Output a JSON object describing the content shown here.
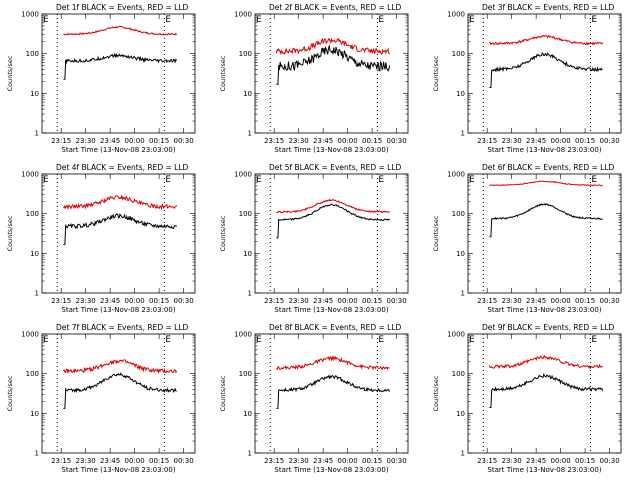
{
  "chart_data": [
    {
      "type": "line",
      "title": "Det 1f BLACK = Events, RED = LLD",
      "xlabel": "Start Time (13-Nov-08 23:03:00)",
      "ylabel": "Counts/sec",
      "yscale": "log",
      "ylim": [
        1,
        1000
      ],
      "x_tick_labels": [
        "23:15",
        "23:30",
        "23:45",
        "00:00",
        "00:15",
        "00:30"
      ],
      "markers": [
        "E",
        "E"
      ],
      "series": [
        {
          "name": "LLD",
          "color": "#dd0000",
          "base": 310,
          "amp": 0.18,
          "noise": 0.02
        },
        {
          "name": "Events",
          "color": "#000000",
          "base": 65,
          "amp": 0.14,
          "noise": 0.04,
          "startDip": true
        }
      ]
    },
    {
      "type": "line",
      "title": "Det 2f BLACK = Events, RED = LLD",
      "xlabel": "Start Time (13-Nov-08 23:03:00)",
      "ylabel": "Counts/sec",
      "yscale": "log",
      "ylim": [
        1,
        1000
      ],
      "x_tick_labels": [
        "23:15",
        "23:30",
        "23:45",
        "00:00",
        "00:15",
        "00:30"
      ],
      "markers": [
        "E",
        "E"
      ],
      "series": [
        {
          "name": "LLD",
          "color": "#dd0000",
          "base": 115,
          "amp": 0.28,
          "noise": 0.07
        },
        {
          "name": "Events",
          "color": "#000000",
          "base": 48,
          "amp": 0.42,
          "noise": 0.12,
          "startDip": true
        }
      ]
    },
    {
      "type": "line",
      "title": "Det 3f BLACK = Events, RED = LLD",
      "xlabel": "Start Time (13-Nov-08 23:03:00)",
      "ylabel": "Counts/sec",
      "yscale": "log",
      "ylim": [
        1,
        1000
      ],
      "x_tick_labels": [
        "23:15",
        "23:30",
        "23:45",
        "00:00",
        "00:15",
        "00:30"
      ],
      "markers": [
        "E",
        "E"
      ],
      "series": [
        {
          "name": "LLD",
          "color": "#dd0000",
          "base": 180,
          "amp": 0.18,
          "noise": 0.03
        },
        {
          "name": "Events",
          "color": "#000000",
          "base": 40,
          "amp": 0.38,
          "noise": 0.04,
          "startDip": true
        }
      ]
    },
    {
      "type": "line",
      "title": "Det 4f BLACK = Events, RED = LLD",
      "xlabel": "Start Time (13-Nov-08 23:03:00)",
      "ylabel": "Counts/sec",
      "yscale": "log",
      "ylim": [
        1,
        1000
      ],
      "x_tick_labels": [
        "23:15",
        "23:30",
        "23:45",
        "00:00",
        "00:15",
        "00:30"
      ],
      "markers": [
        "E",
        "E"
      ],
      "series": [
        {
          "name": "LLD",
          "color": "#dd0000",
          "base": 150,
          "amp": 0.24,
          "noise": 0.05
        },
        {
          "name": "Events",
          "color": "#000000",
          "base": 48,
          "amp": 0.26,
          "noise": 0.05,
          "startDip": true
        }
      ]
    },
    {
      "type": "line",
      "title": "Det 5f BLACK = Events, RED = LLD",
      "xlabel": "Start Time (13-Nov-08 23:03:00)",
      "ylabel": "Counts/sec",
      "yscale": "log",
      "ylim": [
        1,
        1000
      ],
      "x_tick_labels": [
        "23:15",
        "23:30",
        "23:45",
        "00:00",
        "00:15",
        "00:30"
      ],
      "markers": [
        "E",
        "E"
      ],
      "series": [
        {
          "name": "LLD",
          "color": "#dd0000",
          "base": 110,
          "amp": 0.3,
          "noise": 0.02
        },
        {
          "name": "Events",
          "color": "#000000",
          "base": 70,
          "amp": 0.38,
          "noise": 0.02,
          "startDip": true
        }
      ]
    },
    {
      "type": "line",
      "title": "Det 6f BLACK = Events, RED = LLD",
      "xlabel": "Start Time (13-Nov-08 23:03:00)",
      "ylabel": "Counts/sec",
      "yscale": "log",
      "ylim": [
        1,
        1000
      ],
      "x_tick_labels": [
        "23:15",
        "23:30",
        "23:45",
        "00:00",
        "00:15",
        "00:30"
      ],
      "markers": [
        "E",
        "E"
      ],
      "series": [
        {
          "name": "LLD",
          "color": "#dd0000",
          "base": 520,
          "amp": 0.1,
          "noise": 0.01
        },
        {
          "name": "Events",
          "color": "#000000",
          "base": 75,
          "amp": 0.36,
          "noise": 0.02,
          "startDip": true
        }
      ]
    },
    {
      "type": "line",
      "title": "Det 7f BLACK = Events, RED = LLD",
      "xlabel": "Start Time (13-Nov-08 23:03:00)",
      "ylabel": "Counts/sec",
      "yscale": "log",
      "ylim": [
        1,
        1000
      ],
      "x_tick_labels": [
        "23:15",
        "23:30",
        "23:45",
        "00:00",
        "00:15",
        "00:30"
      ],
      "markers": [
        "E",
        "E"
      ],
      "series": [
        {
          "name": "LLD",
          "color": "#dd0000",
          "base": 115,
          "amp": 0.26,
          "noise": 0.05
        },
        {
          "name": "Events",
          "color": "#000000",
          "base": 38,
          "amp": 0.4,
          "noise": 0.04,
          "startDip": true
        }
      ]
    },
    {
      "type": "line",
      "title": "Det 8f BLACK = Events, RED = LLD",
      "xlabel": "Start Time (13-Nov-08 23:03:00)",
      "ylabel": "Counts/sec",
      "yscale": "log",
      "ylim": [
        1,
        1000
      ],
      "x_tick_labels": [
        "23:15",
        "23:30",
        "23:45",
        "00:00",
        "00:15",
        "00:30"
      ],
      "markers": [
        "E",
        "E"
      ],
      "series": [
        {
          "name": "LLD",
          "color": "#dd0000",
          "base": 140,
          "amp": 0.24,
          "noise": 0.04
        },
        {
          "name": "Events",
          "color": "#000000",
          "base": 38,
          "amp": 0.34,
          "noise": 0.04,
          "startDip": true
        }
      ]
    },
    {
      "type": "line",
      "title": "Det 9f BLACK = Events, RED = LLD",
      "xlabel": "Start Time (13-Nov-08 23:03:00)",
      "ylabel": "Counts/sec",
      "yscale": "log",
      "ylim": [
        1,
        1000
      ],
      "x_tick_labels": [
        "23:15",
        "23:30",
        "23:45",
        "00:00",
        "00:15",
        "00:30"
      ],
      "markers": [
        "E",
        "E"
      ],
      "series": [
        {
          "name": "LLD",
          "color": "#dd0000",
          "base": 150,
          "amp": 0.24,
          "noise": 0.04
        },
        {
          "name": "Events",
          "color": "#000000",
          "base": 40,
          "amp": 0.34,
          "noise": 0.04,
          "startDip": true
        }
      ]
    }
  ]
}
